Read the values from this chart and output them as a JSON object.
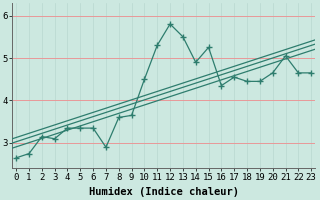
{
  "xlabel": "Humidex (Indice chaleur)",
  "bg_color": "#cce8e0",
  "line_color": "#2e7d6e",
  "grid_color_major_y": "#e89898",
  "grid_color_minor_x": "#b8d8d0",
  "x_data": [
    0,
    1,
    2,
    3,
    4,
    5,
    6,
    7,
    8,
    9,
    10,
    11,
    12,
    13,
    14,
    15,
    16,
    17,
    18,
    19,
    20,
    21,
    22,
    23
  ],
  "y_data": [
    2.65,
    2.75,
    3.15,
    3.1,
    3.35,
    3.35,
    3.35,
    2.9,
    3.6,
    3.65,
    4.5,
    5.3,
    5.8,
    5.5,
    4.9,
    5.25,
    4.35,
    4.55,
    4.45,
    4.45,
    4.65,
    5.05,
    4.65,
    4.65
  ],
  "reg_offsets": [
    -0.12,
    0.0,
    0.1
  ],
  "ylim": [
    2.4,
    6.3
  ],
  "xlim": [
    -0.3,
    23.3
  ],
  "yticks": [
    3,
    4,
    5,
    6
  ],
  "xticks": [
    0,
    1,
    2,
    3,
    4,
    5,
    6,
    7,
    8,
    9,
    10,
    11,
    12,
    13,
    14,
    15,
    16,
    17,
    18,
    19,
    20,
    21,
    22,
    23
  ],
  "tick_fontsize": 6.5,
  "label_fontsize": 7.5
}
